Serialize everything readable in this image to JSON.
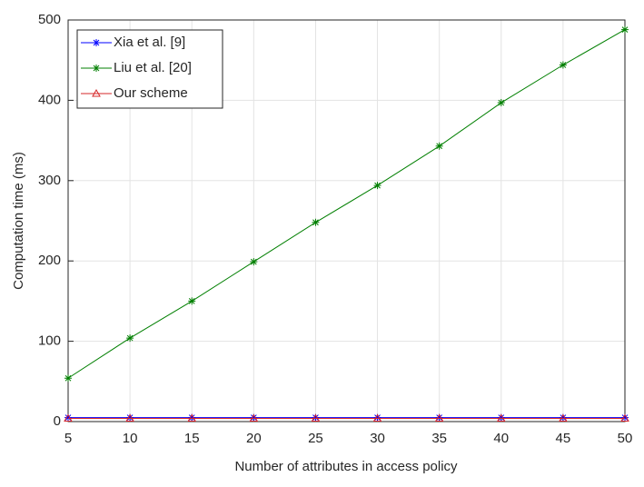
{
  "chart_data": {
    "type": "line",
    "x_label": "Number of attributes in access policy",
    "y_label": "Computation time (ms)",
    "x": [
      5,
      10,
      15,
      20,
      25,
      30,
      35,
      40,
      45,
      50
    ],
    "series": [
      {
        "name": "Xia et al. [9]",
        "color": "#0000ff",
        "marker": "asterisk",
        "values": [
          5,
          5,
          5,
          5,
          5,
          5,
          5,
          5,
          5,
          5
        ]
      },
      {
        "name": "Liu et al. [20]",
        "color": "#007f00",
        "marker": "asterisk",
        "values": [
          54,
          104,
          150,
          199,
          248,
          294,
          343,
          397,
          444,
          488
        ]
      },
      {
        "name": "Our scheme",
        "color": "#d62728",
        "marker": "triangle",
        "values": [
          4,
          4,
          4,
          4,
          4,
          4,
          4,
          4,
          4,
          4
        ]
      }
    ],
    "xlim": [
      5,
      50
    ],
    "xticks": [
      5,
      10,
      15,
      20,
      25,
      30,
      35,
      40,
      45,
      50
    ],
    "ylim": [
      0,
      500
    ],
    "yticks": [
      0,
      100,
      200,
      300,
      400,
      500
    ],
    "grid": true,
    "legend": "upper-left"
  }
}
